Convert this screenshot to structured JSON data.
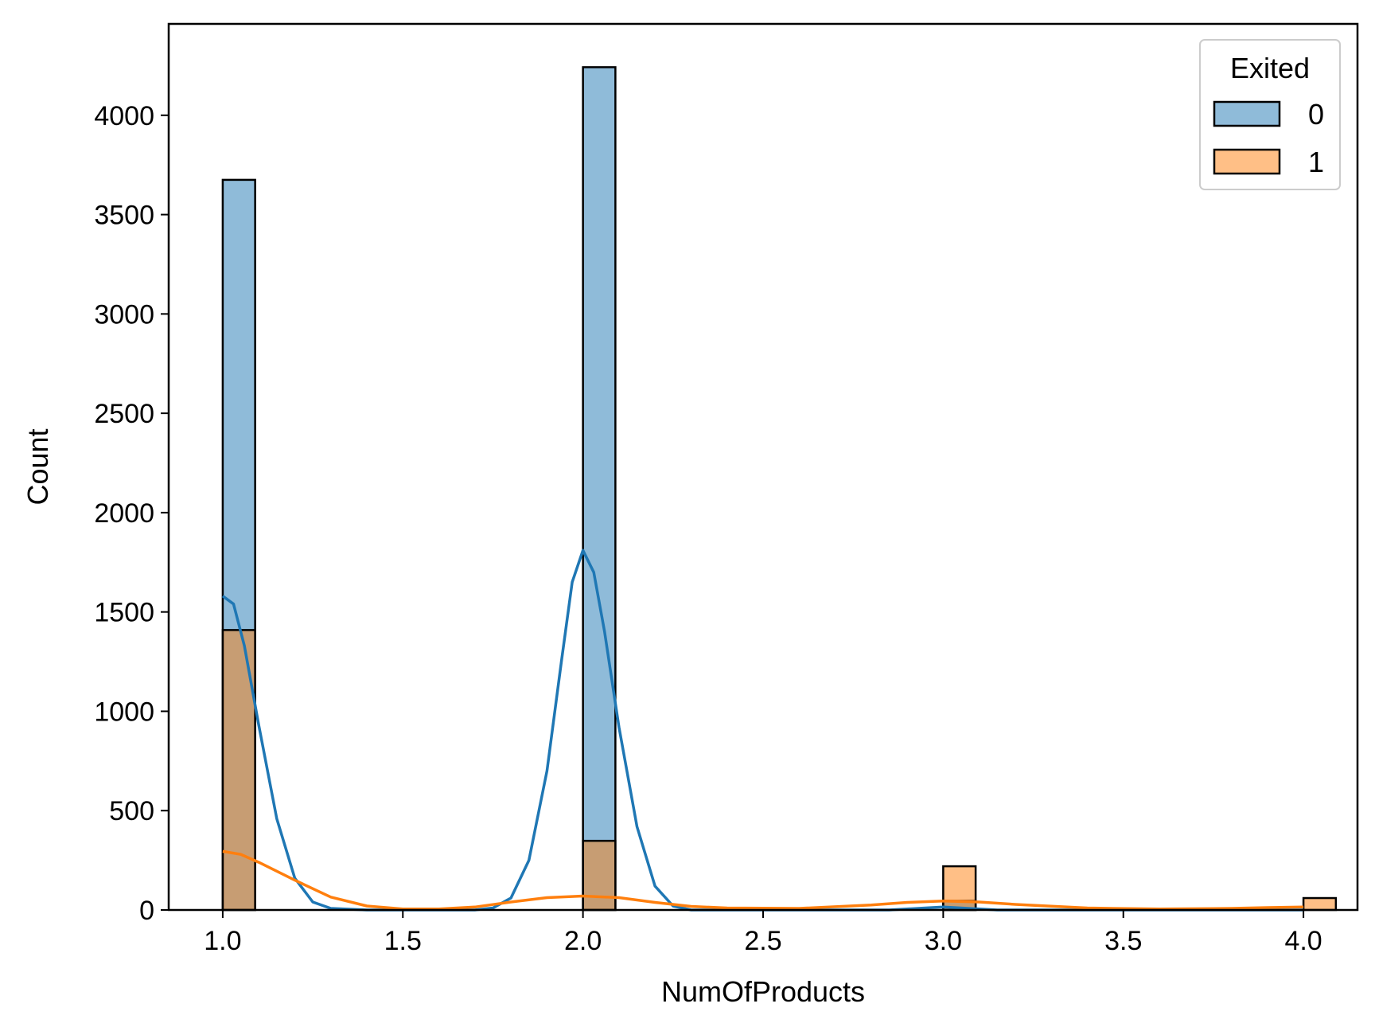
{
  "chart_data": {
    "type": "bar",
    "xlabel": "NumOfProducts",
    "ylabel": "Count",
    "xlim": [
      0.85,
      4.15
    ],
    "ylim": [
      0,
      4460
    ],
    "xticks": [
      1.0,
      1.5,
      2.0,
      2.5,
      3.0,
      3.5,
      4.0
    ],
    "xtick_labels": [
      "1.0",
      "1.5",
      "2.0",
      "2.5",
      "3.0",
      "3.5",
      "4.0"
    ],
    "yticks": [
      0,
      500,
      1000,
      1500,
      2000,
      2500,
      3000,
      3500,
      4000
    ],
    "ytick_labels": [
      "0",
      "500",
      "1000",
      "1500",
      "2000",
      "2500",
      "3000",
      "3500",
      "4000"
    ],
    "bin_width": 0.09,
    "legend": {
      "title": "Exited",
      "position": "upper right"
    },
    "series": [
      {
        "name": "0",
        "color": "#1f77b4",
        "bins": [
          {
            "x": 1.0,
            "count": 3675
          },
          {
            "x": 2.0,
            "count": 4242
          },
          {
            "x": 3.0,
            "count": 46
          },
          {
            "x": 4.0,
            "count": 0
          }
        ],
        "kde": [
          [
            1.0,
            1580
          ],
          [
            1.03,
            1540
          ],
          [
            1.06,
            1330
          ],
          [
            1.1,
            930
          ],
          [
            1.15,
            460
          ],
          [
            1.2,
            160
          ],
          [
            1.25,
            40
          ],
          [
            1.3,
            8
          ],
          [
            1.4,
            0
          ],
          [
            1.7,
            0
          ],
          [
            1.75,
            10
          ],
          [
            1.8,
            60
          ],
          [
            1.85,
            250
          ],
          [
            1.9,
            700
          ],
          [
            1.94,
            1250
          ],
          [
            1.97,
            1650
          ],
          [
            2.0,
            1810
          ],
          [
            2.03,
            1700
          ],
          [
            2.06,
            1400
          ],
          [
            2.1,
            920
          ],
          [
            2.15,
            420
          ],
          [
            2.2,
            120
          ],
          [
            2.25,
            20
          ],
          [
            2.3,
            0
          ],
          [
            2.85,
            0
          ],
          [
            2.95,
            10
          ],
          [
            3.0,
            15
          ],
          [
            3.05,
            10
          ],
          [
            3.15,
            0
          ],
          [
            4.0,
            0
          ]
        ]
      },
      {
        "name": "1",
        "color": "#ff7f0e",
        "bins": [
          {
            "x": 1.0,
            "count": 1409
          },
          {
            "x": 2.0,
            "count": 348
          },
          {
            "x": 3.0,
            "count": 220
          },
          {
            "x": 4.0,
            "count": 60
          }
        ],
        "kde": [
          [
            1.0,
            295
          ],
          [
            1.05,
            280
          ],
          [
            1.1,
            240
          ],
          [
            1.2,
            150
          ],
          [
            1.3,
            65
          ],
          [
            1.4,
            20
          ],
          [
            1.5,
            5
          ],
          [
            1.6,
            5
          ],
          [
            1.7,
            15
          ],
          [
            1.8,
            40
          ],
          [
            1.9,
            62
          ],
          [
            2.0,
            70
          ],
          [
            2.1,
            62
          ],
          [
            2.2,
            38
          ],
          [
            2.3,
            18
          ],
          [
            2.4,
            10
          ],
          [
            2.6,
            8
          ],
          [
            2.8,
            25
          ],
          [
            2.9,
            38
          ],
          [
            3.0,
            45
          ],
          [
            3.1,
            40
          ],
          [
            3.2,
            28
          ],
          [
            3.4,
            10
          ],
          [
            3.6,
            5
          ],
          [
            3.8,
            8
          ],
          [
            3.9,
            12
          ],
          [
            4.0,
            15
          ]
        ]
      }
    ]
  }
}
